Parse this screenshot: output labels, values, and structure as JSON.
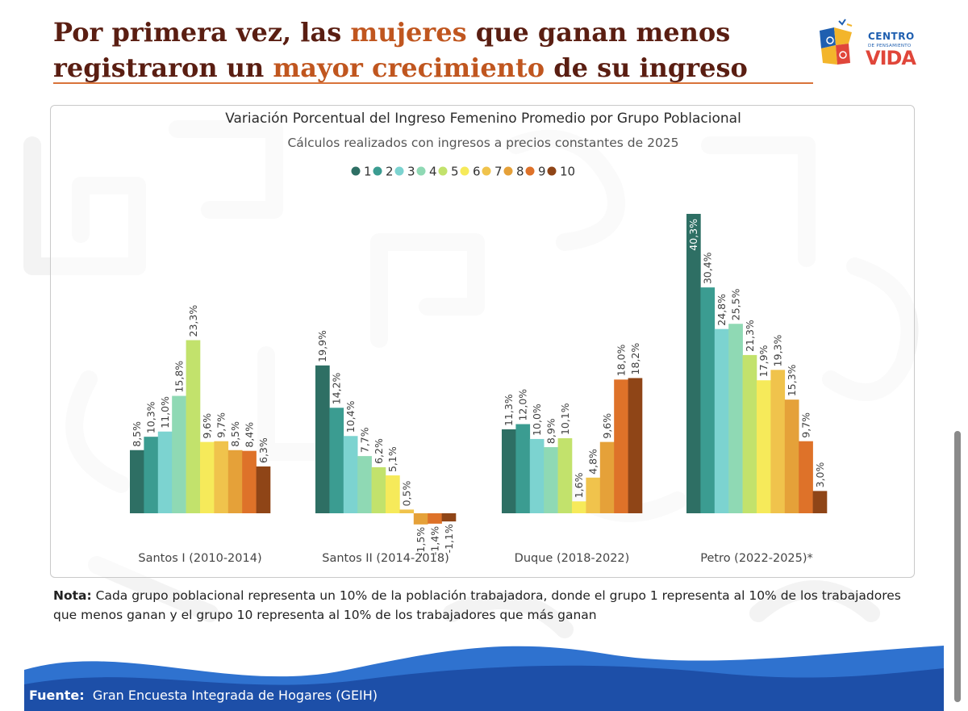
{
  "page": {
    "title_parts": [
      "Por primera vez, las ",
      "mujeres",
      " que ganan menos registraron un ",
      "mayor crecimiento",
      " de su ingreso"
    ],
    "logo_line1": "CENTRO",
    "logo_line2": "DE PENSAMIENTO",
    "logo_line3": "VIDA",
    "note_label": "Nota:",
    "note_text": " Cada grupo poblacional representa un 10% de la población trabajadora, donde el grupo 1 representa al 10% de los trabajadores que menos ganan y el grupo 10 representa al 10% de los trabajadores que más ganan",
    "footer_label": "Fuente:",
    "footer_text": "Gran Encuesta Integrada de Hogares (GEIH)"
  },
  "chart_data": {
    "type": "bar",
    "title": "Variación Porcentual del Ingreso Femenino Promedio por Grupo Poblacional",
    "subtitle": "Cálculos realizados con ingresos a precios constantes de 2025",
    "legend_position": "top-center",
    "grid": false,
    "categories": [
      "Santos I (2010-2014)",
      "Santos II (2014-2018)",
      "Duque (2018-2022)",
      "Petro (2022-2025)*"
    ],
    "series": [
      {
        "name": "1",
        "color": "#2e6f64",
        "values": [
          8.5,
          19.9,
          11.3,
          40.3
        ]
      },
      {
        "name": "2",
        "color": "#3b9c91",
        "values": [
          10.3,
          14.2,
          12.0,
          30.4
        ]
      },
      {
        "name": "3",
        "color": "#7cd3d0",
        "values": [
          11.0,
          10.4,
          10.0,
          24.8
        ]
      },
      {
        "name": "4",
        "color": "#8fd9b4",
        "values": [
          15.8,
          7.7,
          8.9,
          25.5
        ]
      },
      {
        "name": "5",
        "color": "#c2e26c",
        "values": [
          23.3,
          6.2,
          10.1,
          21.3
        ]
      },
      {
        "name": "6",
        "color": "#f6ea5a",
        "values": [
          9.6,
          5.1,
          1.6,
          17.9
        ]
      },
      {
        "name": "7",
        "color": "#f0c34c",
        "values": [
          9.7,
          0.5,
          4.8,
          19.3
        ]
      },
      {
        "name": "8",
        "color": "#e5a139",
        "values": [
          8.5,
          -1.5,
          9.6,
          15.3
        ]
      },
      {
        "name": "9",
        "color": "#de7229",
        "values": [
          8.4,
          -1.4,
          18.0,
          9.7
        ]
      },
      {
        "name": "10",
        "color": "#8f4517",
        "values": [
          6.3,
          -1.1,
          18.2,
          3.0
        ]
      }
    ],
    "labels": [
      [
        "8,5%",
        "19,9%",
        "11,3%",
        "40,3%"
      ],
      [
        "10,3%",
        "14,2%",
        "12,0%",
        "30,4%"
      ],
      [
        "11,0%",
        "10,4%",
        "10,0%",
        "24,8%"
      ],
      [
        "15,8%",
        "7,7%",
        "8,9%",
        "25,5%"
      ],
      [
        "23,3%",
        "6,2%",
        "10,1%",
        "21,3%"
      ],
      [
        "9,6%",
        "5,1%",
        "1,6%",
        "17,9%"
      ],
      [
        "9,7%",
        "0,5%",
        "4,8%",
        "19,3%"
      ],
      [
        "8,5%",
        "-1,5%",
        "9,6%",
        "15,3%"
      ],
      [
        "8,4%",
        "-1,4%",
        "18,0%",
        "9,7%"
      ],
      [
        "6,3%",
        "-1,1%",
        "18,2%",
        "3,0%"
      ]
    ]
  }
}
